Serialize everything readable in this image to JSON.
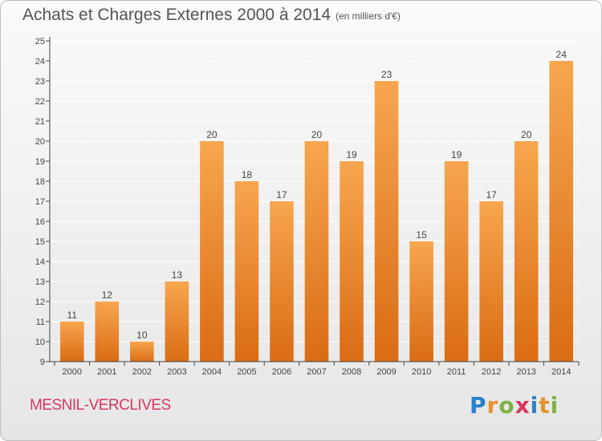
{
  "header": {
    "title": "Achats et Charges Externes 2000 à 2014",
    "subtitle": "(en milliers d'€)"
  },
  "footer": {
    "commune": "MESNIL-VERCLIVES",
    "logo_text": "Proxiti",
    "logo_colors": [
      "#2a7fc9",
      "#e8912a",
      "#7cb342",
      "#d7385e",
      "#2a7fc9",
      "#e8912a",
      "#7cb342"
    ]
  },
  "colors": {
    "bar_top": "#f7a64f",
    "bar_bottom": "#d96c14",
    "axis": "#444444",
    "grid": "#ffffff"
  },
  "chart_data": {
    "type": "bar",
    "title": "Achats et Charges Externes 2000 à 2014",
    "subtitle": "(en milliers d'€)",
    "categories": [
      "2000",
      "2001",
      "2002",
      "2003",
      "2004",
      "2005",
      "2006",
      "2007",
      "2008",
      "2009",
      "2010",
      "2011",
      "2012",
      "2013",
      "2014"
    ],
    "values": [
      11,
      12,
      10,
      13,
      20,
      18,
      17,
      20,
      19,
      23,
      15,
      19,
      17,
      20,
      24
    ],
    "ylim": [
      9,
      25
    ],
    "yticks": [
      9,
      10,
      11,
      12,
      13,
      14,
      15,
      16,
      17,
      18,
      19,
      20,
      21,
      22,
      23,
      24,
      25
    ],
    "xlabel": "",
    "ylabel": "",
    "grid": true,
    "data_labels": true
  }
}
